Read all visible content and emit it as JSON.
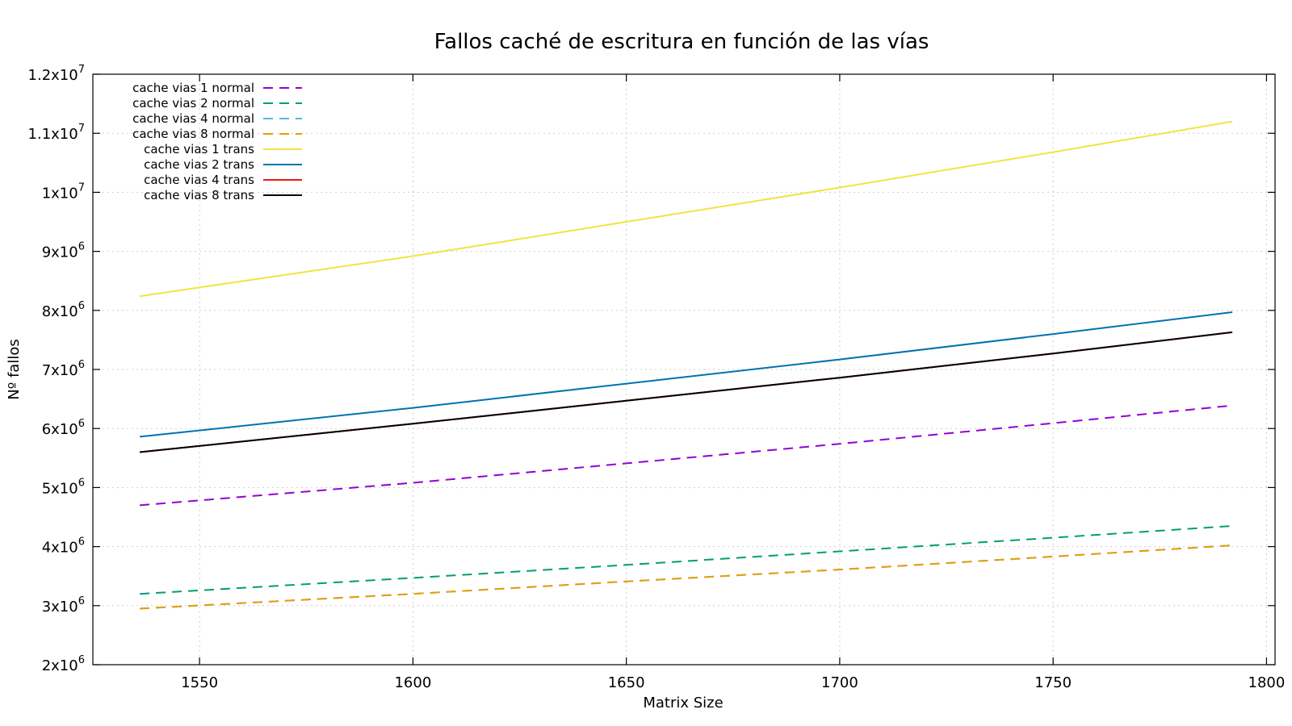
{
  "chart_data": {
    "type": "line",
    "title": "Fallos caché de escritura en función de las vías",
    "xlabel": "Matrix Size",
    "ylabel": "Nº fallos",
    "xlim": [
      1525,
      1802
    ],
    "ylim": [
      2000000,
      12000000
    ],
    "xticks": [
      {
        "value": 1550,
        "label": "1550"
      },
      {
        "value": 1600,
        "label": "1600"
      },
      {
        "value": 1650,
        "label": "1650"
      },
      {
        "value": 1700,
        "label": "1700"
      },
      {
        "value": 1750,
        "label": "1750"
      },
      {
        "value": 1800,
        "label": "1800"
      }
    ],
    "yticks": [
      {
        "value": 2000000,
        "mant": "2x10",
        "exp": "6"
      },
      {
        "value": 3000000,
        "mant": "3x10",
        "exp": "6"
      },
      {
        "value": 4000000,
        "mant": "4x10",
        "exp": "6"
      },
      {
        "value": 5000000,
        "mant": "5x10",
        "exp": "6"
      },
      {
        "value": 6000000,
        "mant": "6x10",
        "exp": "6"
      },
      {
        "value": 7000000,
        "mant": "7x10",
        "exp": "6"
      },
      {
        "value": 8000000,
        "mant": "8x10",
        "exp": "6"
      },
      {
        "value": 9000000,
        "mant": "9x10",
        "exp": "6"
      },
      {
        "value": 10000000,
        "mant": "1x10",
        "exp": "7"
      },
      {
        "value": 11000000,
        "mant": "1.1x10",
        "exp": "7"
      },
      {
        "value": 12000000,
        "mant": "1.2x10",
        "exp": "7"
      }
    ],
    "grid": true,
    "legend_position": "top-left",
    "series": [
      {
        "name": "cache vias 1 normal",
        "color": "#9400d3",
        "dashed": true,
        "x": [
          1536,
          1600,
          1650,
          1700,
          1750,
          1792
        ],
        "y": [
          4700000,
          5080000,
          5410000,
          5740000,
          6090000,
          6390000
        ]
      },
      {
        "name": "cache vias 2 normal",
        "color": "#009e73",
        "dashed": true,
        "x": [
          1536,
          1600,
          1650,
          1700,
          1750,
          1792
        ],
        "y": [
          3200000,
          3470000,
          3690000,
          3920000,
          4150000,
          4350000
        ]
      },
      {
        "name": "cache vias 4 normal",
        "color": "#56b4e9",
        "dashed": true,
        "x": [
          1536,
          1600,
          1650,
          1700,
          1750,
          1792
        ],
        "y": [
          2950000,
          3200000,
          3410000,
          3610000,
          3830000,
          4020000
        ]
      },
      {
        "name": "cache vias 8 normal",
        "color": "#e69f00",
        "dashed": true,
        "x": [
          1536,
          1600,
          1650,
          1700,
          1750,
          1792
        ],
        "y": [
          2950000,
          3200000,
          3410000,
          3610000,
          3830000,
          4020000
        ]
      },
      {
        "name": "cache vias 1 trans",
        "color": "#f0e442",
        "dashed": false,
        "x": [
          1536,
          1600,
          1650,
          1700,
          1750,
          1792
        ],
        "y": [
          8240000,
          8920000,
          9500000,
          10080000,
          10680000,
          11200000
        ]
      },
      {
        "name": "cache vias 2 trans",
        "color": "#0072b2",
        "dashed": false,
        "x": [
          1536,
          1600,
          1650,
          1700,
          1750,
          1792
        ],
        "y": [
          5860000,
          6350000,
          6760000,
          7170000,
          7600000,
          7970000
        ]
      },
      {
        "name": "cache vias 4 trans",
        "color": "#e51e10",
        "dashed": false,
        "x": [
          1536,
          1600,
          1650,
          1700,
          1750,
          1792
        ],
        "y": [
          5600000,
          6080000,
          6470000,
          6860000,
          7270000,
          7630000
        ]
      },
      {
        "name": "cache vias 8 trans",
        "color": "#000000",
        "dashed": false,
        "x": [
          1536,
          1600,
          1650,
          1700,
          1750,
          1792
        ],
        "y": [
          5600000,
          6080000,
          6470000,
          6860000,
          7270000,
          7630000
        ]
      }
    ]
  }
}
